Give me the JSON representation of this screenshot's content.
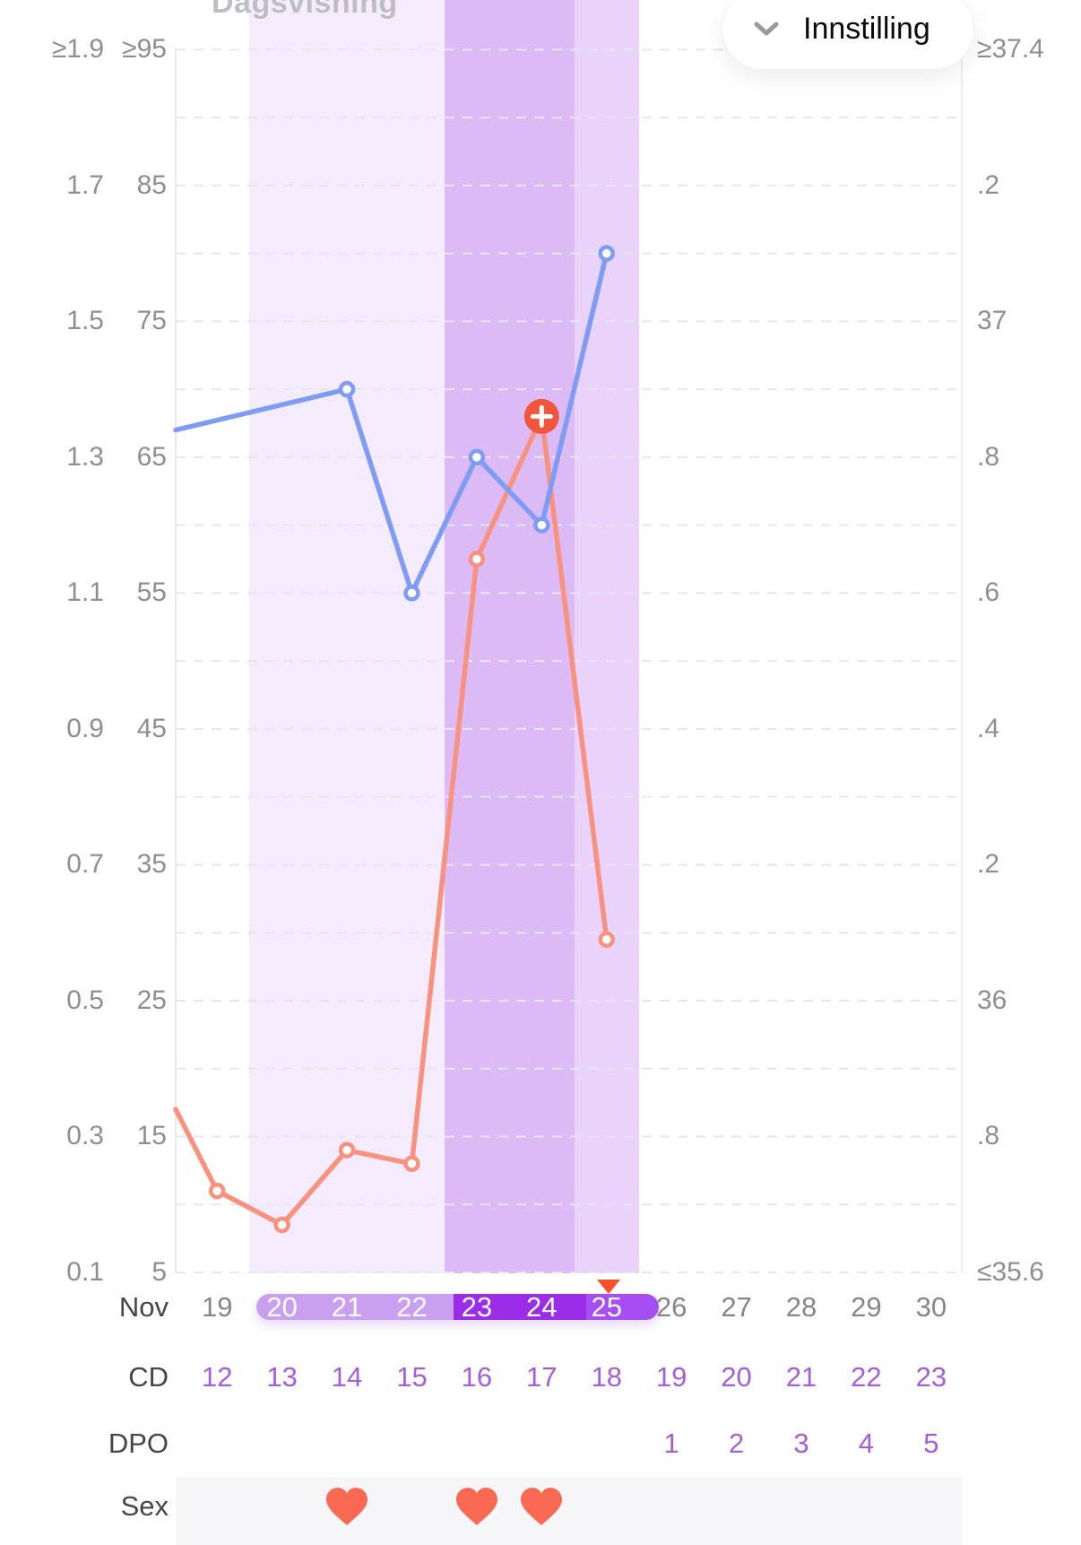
{
  "header": {
    "partial_title": "Dagsvisning",
    "settings_label": "Innstilling"
  },
  "axes": {
    "left_ratio_ticks": [
      "≥1.9",
      "1.7",
      "1.5",
      "1.3",
      "1.1",
      "0.9",
      "0.7",
      "0.5",
      "0.3",
      "0.1"
    ],
    "left_lh_ticks": [
      "≥95",
      "85",
      "75",
      "65",
      "55",
      "45",
      "35",
      "25",
      "15",
      "5"
    ],
    "right_temp_ticks": [
      "≥37.4",
      ".2",
      "37",
      ".8",
      ".6",
      ".4",
      ".2",
      "36",
      ".8",
      "≤35.6"
    ]
  },
  "chart_data": {
    "type": "line",
    "month": "Nov",
    "dates": [
      "19",
      "20",
      "21",
      "22",
      "23",
      "24",
      "25",
      "26",
      "27",
      "28",
      "29",
      "30"
    ],
    "y_axis_left_ratio": {
      "min": 0.1,
      "max": 1.9,
      "step": 0.2
    },
    "y_axis_left_lh": {
      "min": 5,
      "max": 95,
      "step": 10
    },
    "y_axis_right_temp_c": {
      "min": 35.6,
      "max": 37.4,
      "step": 0.2
    },
    "grid": "dashed horizontal every 0.1 ratio / 5 LH / 0.1 °C",
    "series": [
      {
        "name": "temperature",
        "axis": "right_temp_c",
        "color": "#7e9cf4",
        "enters_from_left_at_value": 36.84,
        "points": [
          {
            "date": "21",
            "value": 36.9
          },
          {
            "date": "22",
            "value": 36.6
          },
          {
            "date": "23",
            "value": 36.8
          },
          {
            "date": "24",
            "value": 36.7
          },
          {
            "date": "25",
            "value": 37.1
          }
        ]
      },
      {
        "name": "ovulation-test",
        "axis": "left_ratio",
        "color": "#f8917e",
        "enters_from_left_at_value": 0.34,
        "points": [
          {
            "date": "19",
            "value": 0.22
          },
          {
            "date": "20",
            "value": 0.17
          },
          {
            "date": "21",
            "value": 0.28
          },
          {
            "date": "22",
            "value": 0.26
          },
          {
            "date": "23",
            "value": 1.15
          },
          {
            "date": "24",
            "value": 1.36,
            "marker": "plus-button"
          },
          {
            "date": "25",
            "value": 0.59
          }
        ]
      }
    ],
    "fertile_window_dates": [
      "20",
      "21",
      "22"
    ],
    "high_fertility_dates": [
      "23",
      "24"
    ],
    "post_peak_dates": [
      "25"
    ],
    "ovulation_marker_date": "25"
  },
  "rows": {
    "month_label": "Nov",
    "cd_label": "CD",
    "cd_values": [
      "12",
      "13",
      "14",
      "15",
      "16",
      "17",
      "18",
      "19",
      "20",
      "21",
      "22",
      "23"
    ],
    "dpo_label": "DPO",
    "dpo_values": [
      "",
      "",
      "",
      "",
      "",
      "",
      "",
      "1",
      "2",
      "3",
      "4",
      "5"
    ],
    "sex_label": "Sex",
    "sex_heart_dates": [
      "21",
      "23",
      "24"
    ]
  },
  "colors": {
    "band_fertile": "#f4ecfc",
    "band_high": "#dcbaf5",
    "band_post": "#ead3fa",
    "pill_fertile": "#c9a0ef",
    "pill_high": "#9b2de9",
    "pill_post": "#a64ef1",
    "pill_text": "#ffffff",
    "temp_line": "#7e9cf4",
    "test_line": "#f8917e",
    "plus_marker": "#f0563c",
    "ovulation_triangle": "#fb4f2a",
    "heart": "#f96852",
    "grid_line": "#e6e6eb",
    "axis_line": "#e8e8ee",
    "axis_text": "#8e8e93",
    "date_gray_text": "#85858a",
    "cycle_purple_text": "#a45ed9",
    "row_label_text": "#46464a"
  }
}
